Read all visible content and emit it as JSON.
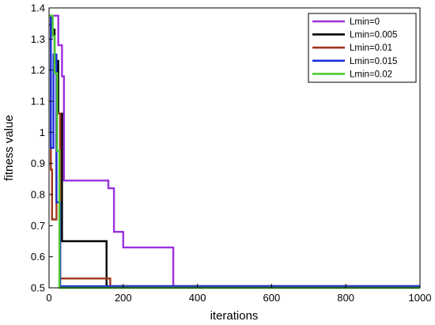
{
  "chart_data": {
    "type": "line",
    "title": "",
    "xlabel": "iterations",
    "ylabel": "fitness value",
    "xlim": [
      0,
      1000
    ],
    "ylim": [
      0.5,
      1.4
    ],
    "xticks": [
      0,
      200,
      400,
      600,
      800,
      1000
    ],
    "yticks": [
      0.5,
      0.6,
      0.7,
      0.8,
      0.9,
      1,
      1.1,
      1.2,
      1.3,
      1.4
    ],
    "grid": false,
    "legend_position": "top-right",
    "series": [
      {
        "name": "Lmin=0",
        "color": "#9b30e0",
        "x": [
          0,
          25,
          25,
          35,
          35,
          40,
          40,
          160,
          160,
          175,
          175,
          200,
          200,
          335,
          335,
          1000
        ],
        "y": [
          1.375,
          1.375,
          1.28,
          1.28,
          1.18,
          1.18,
          0.845,
          0.845,
          0.82,
          0.82,
          0.68,
          0.68,
          0.63,
          0.63,
          0.505,
          0.505
        ]
      },
      {
        "name": "Lmin=0.005",
        "color": "#000000",
        "x": [
          0,
          5,
          5,
          15,
          15,
          25,
          25,
          35,
          35,
          155,
          155,
          790,
          790,
          1000
        ],
        "y": [
          1.375,
          1.375,
          1.33,
          1.33,
          1.23,
          1.23,
          1.06,
          1.06,
          0.65,
          0.65,
          0.505,
          0.505,
          0.505,
          0.505
        ]
      },
      {
        "name": "Lmin=0.01",
        "color": "#a0361a",
        "x": [
          0,
          5,
          5,
          8,
          8,
          20,
          20,
          30,
          30,
          165,
          165,
          1000
        ],
        "y": [
          1.345,
          1.345,
          0.88,
          0.88,
          0.72,
          0.72,
          1.06,
          1.06,
          0.53,
          0.53,
          0.505,
          0.505
        ]
      },
      {
        "name": "Lmin=0.015",
        "color": "#1a2ed8",
        "x": [
          0,
          5,
          5,
          12,
          12,
          20,
          20,
          30,
          30,
          40,
          40,
          1000
        ],
        "y": [
          1.375,
          1.375,
          0.95,
          0.95,
          1.25,
          1.25,
          0.775,
          0.775,
          0.505,
          0.505,
          0.505,
          0.505
        ]
      },
      {
        "name": "Lmin=0.02",
        "color": "#4fca2f",
        "x": [
          0,
          10,
          10,
          15,
          15,
          22,
          22,
          28,
          28,
          1000
        ],
        "y": [
          1.375,
          1.375,
          1.31,
          1.31,
          1.19,
          1.19,
          0.94,
          0.94,
          0.5,
          0.5
        ]
      }
    ]
  }
}
